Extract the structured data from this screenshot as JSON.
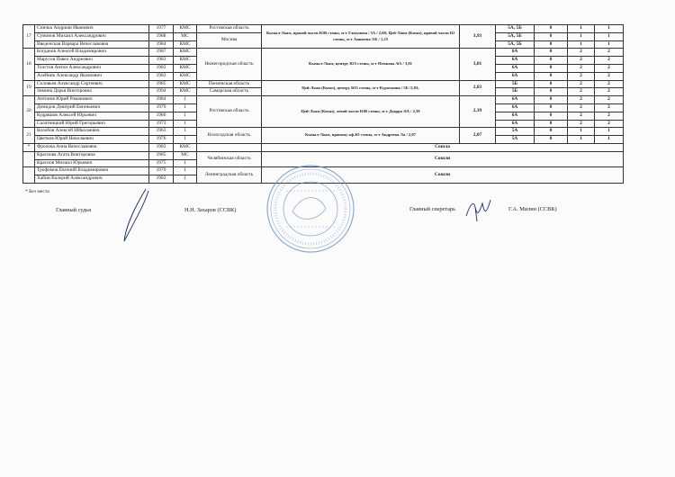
{
  "table": {
    "groups": [
      {
        "place": "17",
        "route": "Кызыл-Лоам, правой части ЮВ стены, м-т Глазунова / 5А / 2,68; Цей-Лаом (Кизаз), правой части Ю стены, м-т Ашнеева /5Б / 1,25",
        "score": "3,93",
        "regions": [
          {
            "name": "Ростовская область",
            "members": [
              {
                "name": "Спичка Андриан Иванович",
                "year": 1977,
                "rank": "КМС",
                "results": [
                  "5А, 5Б",
                  0,
                  1,
                  1
                ]
              }
            ]
          },
          {
            "name": "Москва",
            "members": [
              {
                "name": "Сумонов Михаил Александрович",
                "year": 1988,
                "rank": "МС",
                "results": [
                  "5А, 5Б",
                  0,
                  1,
                  1
                ]
              },
              {
                "name": "Введенская Варвара Вячеславовна",
                "year": 1984,
                "rank": "КМС",
                "results": [
                  "5А, 5Б",
                  0,
                  1,
                  1
                ]
              }
            ]
          }
        ]
      },
      {
        "place": "18",
        "route": "Кызыл-Лоам, центру ЮЗ стены, м-т Немкова /6А / 3,81",
        "score": "3,81",
        "regions": [
          {
            "name": "Нижегородская область",
            "members": [
              {
                "name": "Богданов Алексей Владимирович",
                "year": 1987,
                "rank": "КМС",
                "results": [
                  "6А",
                  0,
                  2,
                  2
                ]
              },
              {
                "name": "Марусов Павел Андреевич",
                "year": 1983,
                "rank": "КМС",
                "results": [
                  "6А",
                  0,
                  2,
                  2
                ]
              },
              {
                "name": "Толстов Антон Александрович",
                "year": 1983,
                "rank": "КМС",
                "results": [
                  "6А",
                  0,
                  2,
                  2
                ]
              },
              {
                "name": "Алейник Александр Яковлевич",
                "year": 1983,
                "rank": "КМС",
                "results": [
                  "6А",
                  0,
                  2,
                  2
                ]
              }
            ]
          }
        ]
      },
      {
        "place": "19",
        "route": "Цей-Лоам (Кизаз), центру ЮЗ стены, м-т Курочкина / 5Б /2,83;",
        "score": "2,83",
        "regions": [
          {
            "name": "Пензенская область",
            "members": [
              {
                "name": "Соловьев Александр Сергеевич",
                "year": 1985,
                "rank": "КМС",
                "results": [
                  "5Б",
                  0,
                  2,
                  2
                ]
              }
            ]
          },
          {
            "name": "Самарская область",
            "members": [
              {
                "name": "Зимина Дарья Викторовна",
                "year": 1994,
                "rank": "КМС",
                "results": [
                  "5Б",
                  0,
                  2,
                  2
                ]
              }
            ]
          }
        ]
      },
      {
        "place": "20",
        "route": "Цей-Лоам (Кизаз), левой части ЮВ стены, м-т Дзарро /6А / 2,39",
        "score": "2,39",
        "regions": [
          {
            "name": "Ростовская область",
            "members": [
              {
                "name": "Антонов Юрий Романович",
                "year": 1984,
                "rank": 1,
                "results": [
                  "6А",
                  0,
                  2,
                  2
                ]
              },
              {
                "name": "Демидов Дмитрий Евгеньевич",
                "year": 1979,
                "rank": 1,
                "results": [
                  "6А",
                  0,
                  2,
                  2
                ]
              },
              {
                "name": "Кудряшов Алексей Юрьевич",
                "year": 1986,
                "rank": 1,
                "results": [
                  "6А",
                  0,
                  2,
                  2
                ]
              },
              {
                "name": "Салатницкий Юрий Григорьевич",
                "year": 1973,
                "rank": 1,
                "results": [
                  "6А",
                  0,
                  2,
                  2
                ]
              }
            ]
          }
        ]
      },
      {
        "place": "21",
        "route": "Кызыл-Лоам, правому кф.Ю стены, м-т Андреева /5а / 2,07",
        "score": "2,07",
        "regions": [
          {
            "name": "Вологодская область",
            "members": [
              {
                "name": "Колобов Алексей НИколаевич",
                "year": 1963,
                "rank": 1,
                "results": [
                  "5А",
                  0,
                  1,
                  1
                ]
              },
              {
                "name": "Цветков Юрий Николаевич",
                "year": 1976,
                "rank": 1,
                "results": [
                  "5А",
                  0,
                  1,
                  1
                ]
              }
            ]
          }
        ]
      },
      {
        "place": "*",
        "status": "Сошла",
        "regions": [
          {
            "members": [
              {
                "name": "Фролова Анна Вячеславовна",
                "year": 1983,
                "rank": "КМС"
              }
            ]
          }
        ]
      },
      {
        "status": "Сошли",
        "regions": [
          {
            "name": "Челябинская область",
            "members": [
              {
                "name": "Краснова Агата Викторовна",
                "year": 1985,
                "rank": "МС"
              },
              {
                "name": "Краснов Михаил Юрьевич",
                "year": 1975,
                "rank": 1
              }
            ]
          }
        ]
      },
      {
        "status": "Сошли",
        "regions": [
          {
            "name": "Ленинградская область",
            "members": [
              {
                "name": "Трофимов Евгений Владимирович",
                "year": 1970,
                "rank": 1
              },
              {
                "name": "Хабин Валерий Александрович",
                "year": 1983,
                "rank": 1
              }
            ]
          }
        ]
      }
    ]
  },
  "footnote": "* Без места",
  "signatures": {
    "chief_judge_label": "Главный судья",
    "chief_judge_name": "Н.Н. Захаров (ССВК)",
    "secretary_label": "Главный секретарь",
    "secretary_name": "Г.А. Милин (ССВК)"
  }
}
